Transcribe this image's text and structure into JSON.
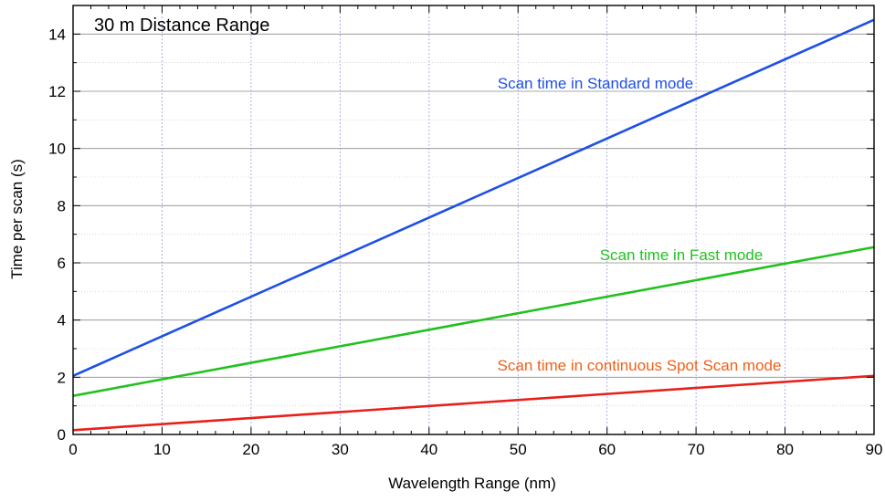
{
  "chart_data": {
    "type": "line",
    "title": "30 m Distance Range",
    "xlabel": "Wavelength Range (nm)",
    "ylabel": "Time per scan (s)",
    "xlim": [
      0,
      90
    ],
    "ylim": [
      0,
      15
    ],
    "x_ticks": [
      "0",
      "10",
      "20",
      "30",
      "40",
      "50",
      "60",
      "70",
      "80",
      "90"
    ],
    "y_ticks": [
      "0",
      "2",
      "4",
      "6",
      "8",
      "10",
      "12",
      "14"
    ],
    "grid": true,
    "series": [
      {
        "name": "Scan time in Standard mode",
        "color": "#1e4fe6",
        "x": [
          0,
          90
        ],
        "y": [
          2.05,
          14.5
        ]
      },
      {
        "name": "Scan time in Fast mode",
        "color": "#22c11e",
        "x": [
          0,
          90
        ],
        "y": [
          1.35,
          6.55
        ]
      },
      {
        "name": "Scan time in continuous Spot Scan mode",
        "color": "#e8201a",
        "x": [
          0,
          90
        ],
        "y": [
          0.15,
          2.05
        ]
      }
    ],
    "annotation_colors": [
      "#1e4fe6",
      "#22c11e",
      "#f0601a"
    ]
  }
}
